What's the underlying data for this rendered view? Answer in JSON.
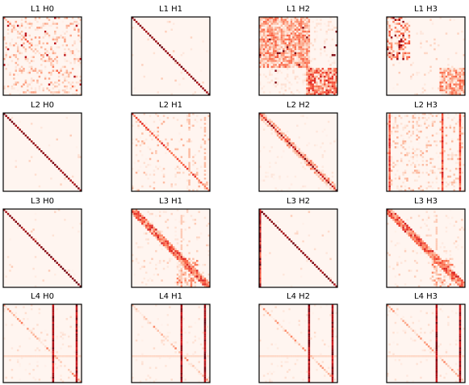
{
  "chart_data": {
    "type": "heatmap",
    "title": "",
    "colormap": "Reds",
    "value_range": [
      0,
      1
    ],
    "grid": false,
    "rows": 4,
    "cols": 4,
    "matrix_size": 40,
    "panels": [
      {
        "title": "L1 H0",
        "pattern": "scattered"
      },
      {
        "title": "L1 H1",
        "pattern": "diagonal"
      },
      {
        "title": "L1 H2",
        "pattern": "block"
      },
      {
        "title": "L1 H3",
        "pattern": "block-sparse"
      },
      {
        "title": "L2 H0",
        "pattern": "diagonal"
      },
      {
        "title": "L2 H1",
        "pattern": "sparse-diagonal"
      },
      {
        "title": "L2 H2",
        "pattern": "band"
      },
      {
        "title": "L2 H3",
        "pattern": "columns"
      },
      {
        "title": "L3 H0",
        "pattern": "diagonal"
      },
      {
        "title": "L3 H1",
        "pattern": "band-blocks"
      },
      {
        "title": "L3 H2",
        "pattern": "diagonal-firstcol"
      },
      {
        "title": "L3 H3",
        "pattern": "band-blocks"
      },
      {
        "title": "L4 H0",
        "pattern": "vertical-stripes"
      },
      {
        "title": "L4 H1",
        "pattern": "vertical-stripes"
      },
      {
        "title": "L4 H2",
        "pattern": "vertical-stripes"
      },
      {
        "title": "L4 H3",
        "pattern": "vertical-stripes"
      }
    ]
  }
}
